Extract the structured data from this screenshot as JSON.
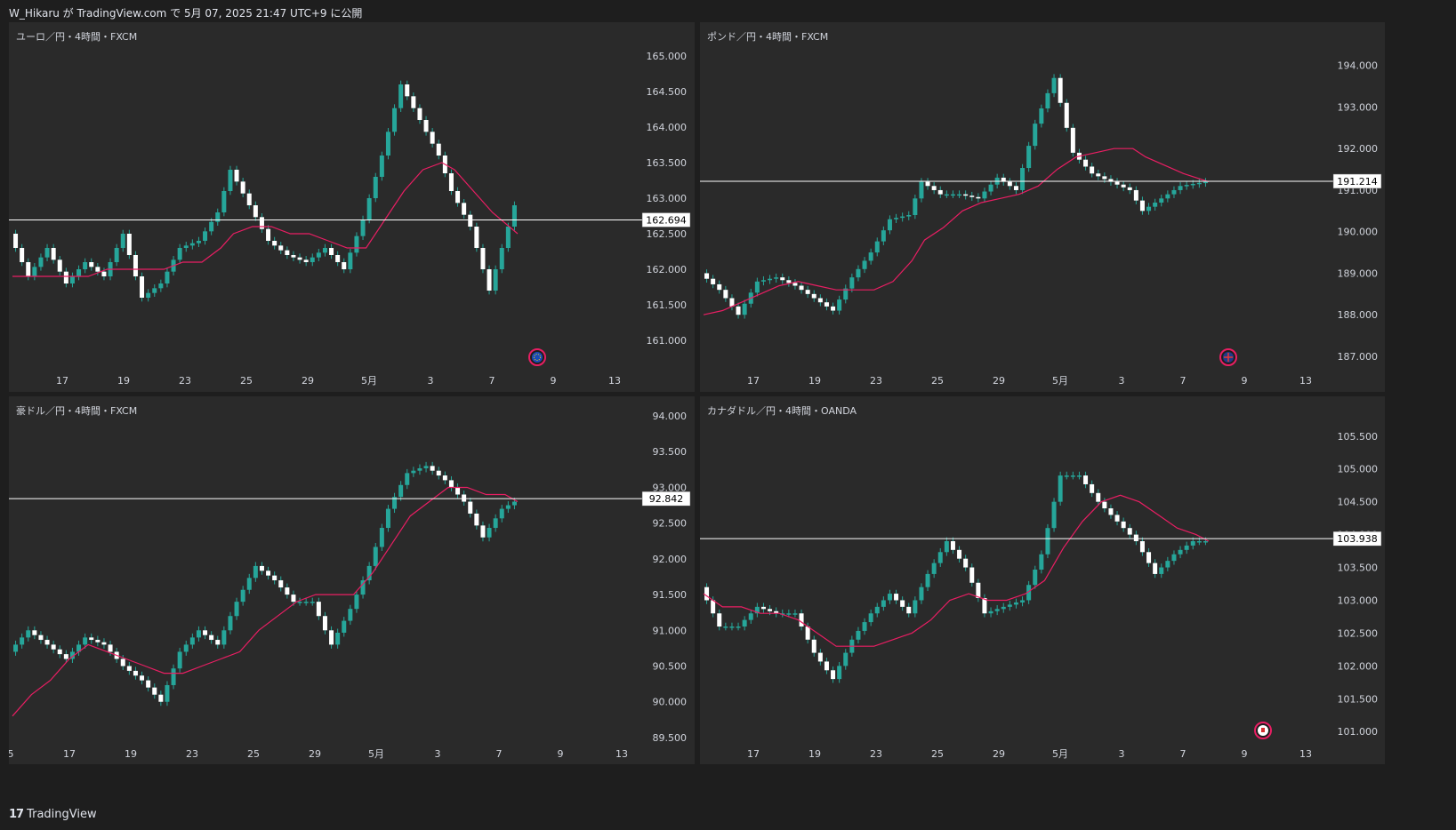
{
  "header": {
    "text": "W_Hikaru が TradingView.com で 5月 07, 2025 21:47 UTC+9 に公開"
  },
  "footer": {
    "logo": "17",
    "text": "TradingView"
  },
  "colors": {
    "background": "#1e1e1e",
    "panel": "#2a2a2a",
    "bull": "#26a69a",
    "bear": "#ffffff",
    "ma": "#e91e63",
    "price_line": "#ffffff"
  },
  "chart_data": [
    {
      "id": "eurjpy",
      "type": "line",
      "title": "ユーロ／円・4時間・FXCM",
      "flag_icon": "eu-flag-icon",
      "x_ticks": [
        "17",
        "19",
        "23",
        "25",
        "29",
        "5月",
        "3",
        "7",
        "9",
        "13"
      ],
      "y_ticks": [
        "165.000",
        "164.500",
        "164.000",
        "163.500",
        "163.000",
        "162.500",
        "162.000",
        "161.500",
        "161.000"
      ],
      "ylim": [
        160.6,
        165.1
      ],
      "last_price": "162.694",
      "series": [
        {
          "x": [
            0,
            6,
            12,
            18,
            24,
            30,
            36,
            42,
            48,
            54,
            60,
            66,
            70,
            76,
            82,
            88,
            94,
            100,
            106,
            112,
            118,
            124,
            130,
            136,
            140,
            146,
            152,
            160
          ],
          "values": [
            162.5,
            161.9,
            162.3,
            161.8,
            162.1,
            161.9,
            162.5,
            161.6,
            161.8,
            162.3,
            162.4,
            162.8,
            163.4,
            162.9,
            162.4,
            162.2,
            162.1,
            162.3,
            162.0,
            162.7,
            163.6,
            164.6,
            164.1,
            163.6,
            163.1,
            162.6,
            161.7,
            162.9
          ]
        }
      ],
      "ma_values": [
        161.9,
        161.9,
        161.9,
        161.9,
        161.9,
        162.0,
        162.0,
        162.0,
        162.0,
        162.1,
        162.1,
        162.3,
        162.5,
        162.6,
        162.6,
        162.5,
        162.5,
        162.4,
        162.3,
        162.3,
        162.7,
        163.1,
        163.4,
        163.5,
        163.4,
        163.1,
        162.8,
        162.5
      ]
    },
    {
      "id": "gbpjpy",
      "type": "line",
      "title": "ポンド／円・4時間・FXCM",
      "flag_icon": "uk-flag-icon",
      "x_ticks": [
        "17",
        "19",
        "23",
        "25",
        "29",
        "5月",
        "3",
        "7",
        "9",
        "13"
      ],
      "y_ticks": [
        "194.000",
        "193.000",
        "192.000",
        "191.000",
        "190.000",
        "189.000",
        "188.000",
        "187.000"
      ],
      "ylim": [
        186.7,
        194.4
      ],
      "last_price": "191.214",
      "series": [
        {
          "x": [
            0,
            6,
            12,
            18,
            24,
            30,
            36,
            42,
            48,
            54,
            60,
            66,
            70,
            76,
            82,
            88,
            94,
            100,
            106,
            112,
            118,
            124,
            130,
            136,
            140,
            146,
            152,
            160
          ],
          "values": [
            189.0,
            188.6,
            188.0,
            188.8,
            188.9,
            188.7,
            188.4,
            188.1,
            188.9,
            189.5,
            190.3,
            190.4,
            191.2,
            190.9,
            190.9,
            190.8,
            191.3,
            191.0,
            192.6,
            193.7,
            191.9,
            191.4,
            191.2,
            191.0,
            190.5,
            190.8,
            191.1,
            191.2
          ]
        }
      ],
      "ma_values": [
        188.0,
        188.1,
        188.3,
        188.5,
        188.7,
        188.8,
        188.7,
        188.6,
        188.6,
        188.6,
        188.8,
        189.3,
        189.8,
        190.1,
        190.5,
        190.7,
        190.8,
        190.9,
        191.1,
        191.5,
        191.8,
        191.9,
        192.0,
        192.0,
        191.8,
        191.6,
        191.4,
        191.2
      ]
    },
    {
      "id": "audjpy",
      "type": "line",
      "title": "豪ドル／円・4時間・FXCM",
      "flag_icon": "",
      "x_ticks": [
        "5",
        "17",
        "19",
        "23",
        "25",
        "29",
        "5月",
        "3",
        "7",
        "9",
        "13"
      ],
      "y_ticks": [
        "94.000",
        "93.500",
        "93.000",
        "92.500",
        "92.000",
        "91.500",
        "91.000",
        "90.500",
        "90.000",
        "89.500"
      ],
      "ylim": [
        89.4,
        94.05
      ],
      "last_price": "92.842",
      "series": [
        {
          "x": [
            0,
            6,
            12,
            18,
            24,
            30,
            36,
            42,
            48,
            54,
            60,
            66,
            72,
            78,
            84,
            90,
            96,
            102,
            108,
            114,
            120,
            126,
            132,
            138,
            144,
            150,
            156,
            160
          ],
          "values": [
            90.7,
            91.0,
            90.8,
            90.6,
            90.9,
            90.8,
            90.5,
            90.3,
            90.0,
            90.7,
            91.0,
            90.8,
            91.4,
            91.9,
            91.7,
            91.4,
            91.4,
            90.8,
            91.3,
            91.9,
            92.7,
            93.2,
            93.3,
            93.1,
            92.8,
            92.3,
            92.7,
            92.8
          ]
        }
      ],
      "ma_values": [
        89.8,
        90.1,
        90.3,
        90.6,
        90.8,
        90.7,
        90.6,
        90.5,
        90.4,
        90.4,
        90.5,
        90.6,
        90.7,
        91.0,
        91.2,
        91.4,
        91.5,
        91.5,
        91.5,
        91.8,
        92.2,
        92.6,
        92.8,
        93.0,
        93.0,
        92.9,
        92.9,
        92.8
      ]
    },
    {
      "id": "cadjpy",
      "type": "line",
      "title": "カナダドル／円・4時間・OANDA",
      "flag_icon": "ca-flag-icon",
      "x_ticks": [
        "17",
        "19",
        "23",
        "25",
        "29",
        "5月",
        "3",
        "7",
        "9",
        "13"
      ],
      "y_ticks": [
        "105.500",
        "105.000",
        "104.500",
        "104.000",
        "103.500",
        "103.000",
        "102.500",
        "102.000",
        "101.500",
        "101.000"
      ],
      "ylim": [
        100.8,
        105.7
      ],
      "last_price": "103.938",
      "series": [
        {
          "x": [
            0,
            6,
            12,
            18,
            24,
            30,
            36,
            42,
            48,
            54,
            60,
            66,
            72,
            78,
            84,
            90,
            96,
            102,
            108,
            114,
            120,
            126,
            132,
            138,
            144,
            150,
            156,
            160
          ],
          "values": [
            103.2,
            102.6,
            102.6,
            102.9,
            102.8,
            102.8,
            102.2,
            101.8,
            102.4,
            102.8,
            103.1,
            102.8,
            103.4,
            103.9,
            103.5,
            102.8,
            102.9,
            103.0,
            103.7,
            104.9,
            104.9,
            104.5,
            104.2,
            103.9,
            103.4,
            103.7,
            103.9,
            103.9
          ]
        }
      ],
      "ma_values": [
        103.1,
        102.9,
        102.9,
        102.8,
        102.8,
        102.7,
        102.5,
        102.3,
        102.3,
        102.3,
        102.4,
        102.5,
        102.7,
        103.0,
        103.1,
        103.0,
        103.0,
        103.1,
        103.3,
        103.8,
        104.2,
        104.5,
        104.6,
        104.5,
        104.3,
        104.1,
        104.0,
        103.9
      ]
    }
  ]
}
